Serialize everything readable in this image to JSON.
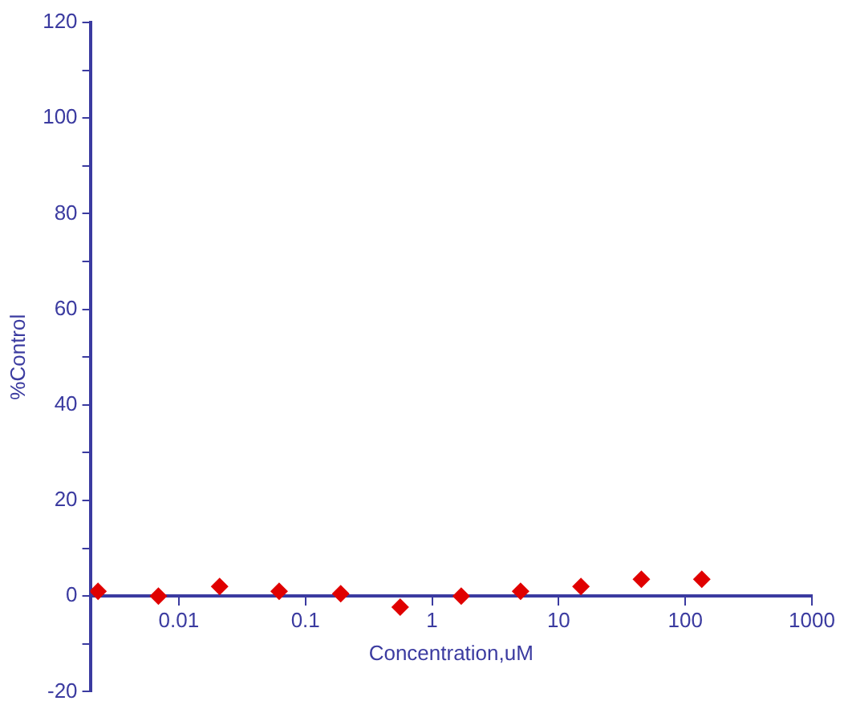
{
  "chart_data": {
    "type": "scatter",
    "xlabel": "Concentration,uM",
    "ylabel": "%Control",
    "x": [
      0.0023,
      0.0069,
      0.021,
      0.062,
      0.19,
      0.56,
      1.7,
      5,
      15,
      45,
      135
    ],
    "series": [
      {
        "color": "#e00000",
        "values": [
          1,
          0,
          2,
          1,
          0.5,
          -2.3,
          0,
          1,
          2,
          3.5,
          3.5
        ]
      }
    ],
    "log": "x",
    "xlim": [
      0.002,
      1000
    ],
    "xticks": [
      0.01,
      0.1,
      1,
      10,
      100,
      1000
    ],
    "ylim": [
      -20,
      120
    ],
    "yticks": [
      -20,
      {
        "value": -10,
        "label": null
      },
      0,
      {
        "value": 10,
        "label": null
      },
      20,
      {
        "value": 30,
        "label": null
      },
      40,
      {
        "value": 50,
        "label": null
      },
      60,
      {
        "value": 70,
        "label": null
      },
      80,
      {
        "value": 90,
        "label": null
      },
      100,
      {
        "value": 110,
        "label": null
      },
      120
    ],
    "grid": false,
    "legend": false,
    "marker": "diamond"
  }
}
